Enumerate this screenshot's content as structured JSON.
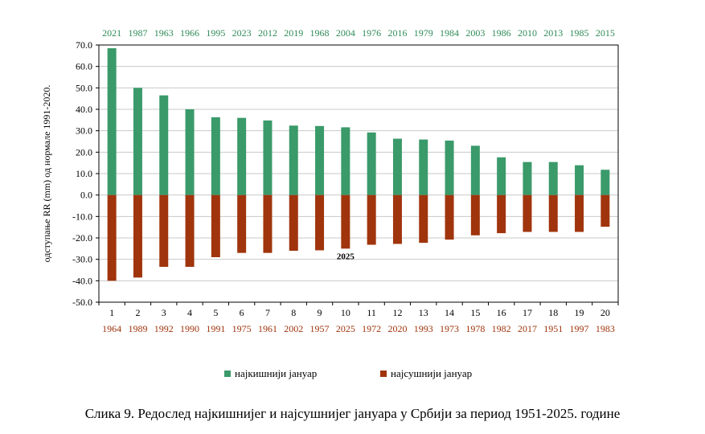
{
  "chart_data": {
    "type": "bar",
    "categories": [
      "1",
      "2",
      "3",
      "4",
      "5",
      "6",
      "7",
      "8",
      "9",
      "10",
      "11",
      "12",
      "13",
      "14",
      "15",
      "16",
      "17",
      "18",
      "19",
      "20"
    ],
    "top_years": [
      "2021",
      "1987",
      "1963",
      "1966",
      "1995",
      "2023",
      "2012",
      "2019",
      "1968",
      "2004",
      "1976",
      "2016",
      "1979",
      "1984",
      "2003",
      "1986",
      "2010",
      "2013",
      "1985",
      "2015"
    ],
    "bottom_years": [
      "1964",
      "1989",
      "1992",
      "1990",
      "1991",
      "1975",
      "1961",
      "2002",
      "1957",
      "2025",
      "1972",
      "2020",
      "1993",
      "1973",
      "1978",
      "1982",
      "2017",
      "1951",
      "1997",
      "1983"
    ],
    "series": [
      {
        "name": "најкишнији јануар",
        "color": "#3a9a6a",
        "values": [
          68.5,
          50.0,
          46.5,
          40.0,
          36.3,
          36.0,
          34.8,
          32.4,
          32.2,
          31.6,
          29.2,
          26.3,
          25.9,
          25.4,
          23.0,
          17.6,
          15.4,
          15.4,
          13.9,
          11.8
        ]
      },
      {
        "name": "најсушнији јануар",
        "color": "#a0340c",
        "values": [
          -40.0,
          -38.5,
          -33.5,
          -33.5,
          -29.0,
          -27.0,
          -27.0,
          -26.0,
          -25.8,
          -25.0,
          -23.2,
          -22.8,
          -22.3,
          -20.8,
          -18.8,
          -17.8,
          -17.2,
          -17.2,
          -17.2,
          -14.8
        ]
      }
    ],
    "ylabel": "одступање RR (mm)  од  нормале 1991-2020.",
    "ylim": [
      -50,
      70
    ],
    "yticks": [
      "70.0",
      "60.0",
      "50.0",
      "40.0",
      "30.0",
      "20.0",
      "10.0",
      "0.0",
      "-10.0",
      "-20.0",
      "-30.0",
      "-40.0",
      "-50.0"
    ],
    "annotation": "2025",
    "annotation_index": 9,
    "grid": true,
    "legend_position": "bottom"
  },
  "colors": {
    "wet": "#3a9a6a",
    "dry": "#a0340c",
    "wet_text": "#2e8b57",
    "dry_text": "#a0340c"
  },
  "caption": "Слика 9. Редослед најкишнијег и најсушнијег јануара у Србији за период 1951-2025. године"
}
